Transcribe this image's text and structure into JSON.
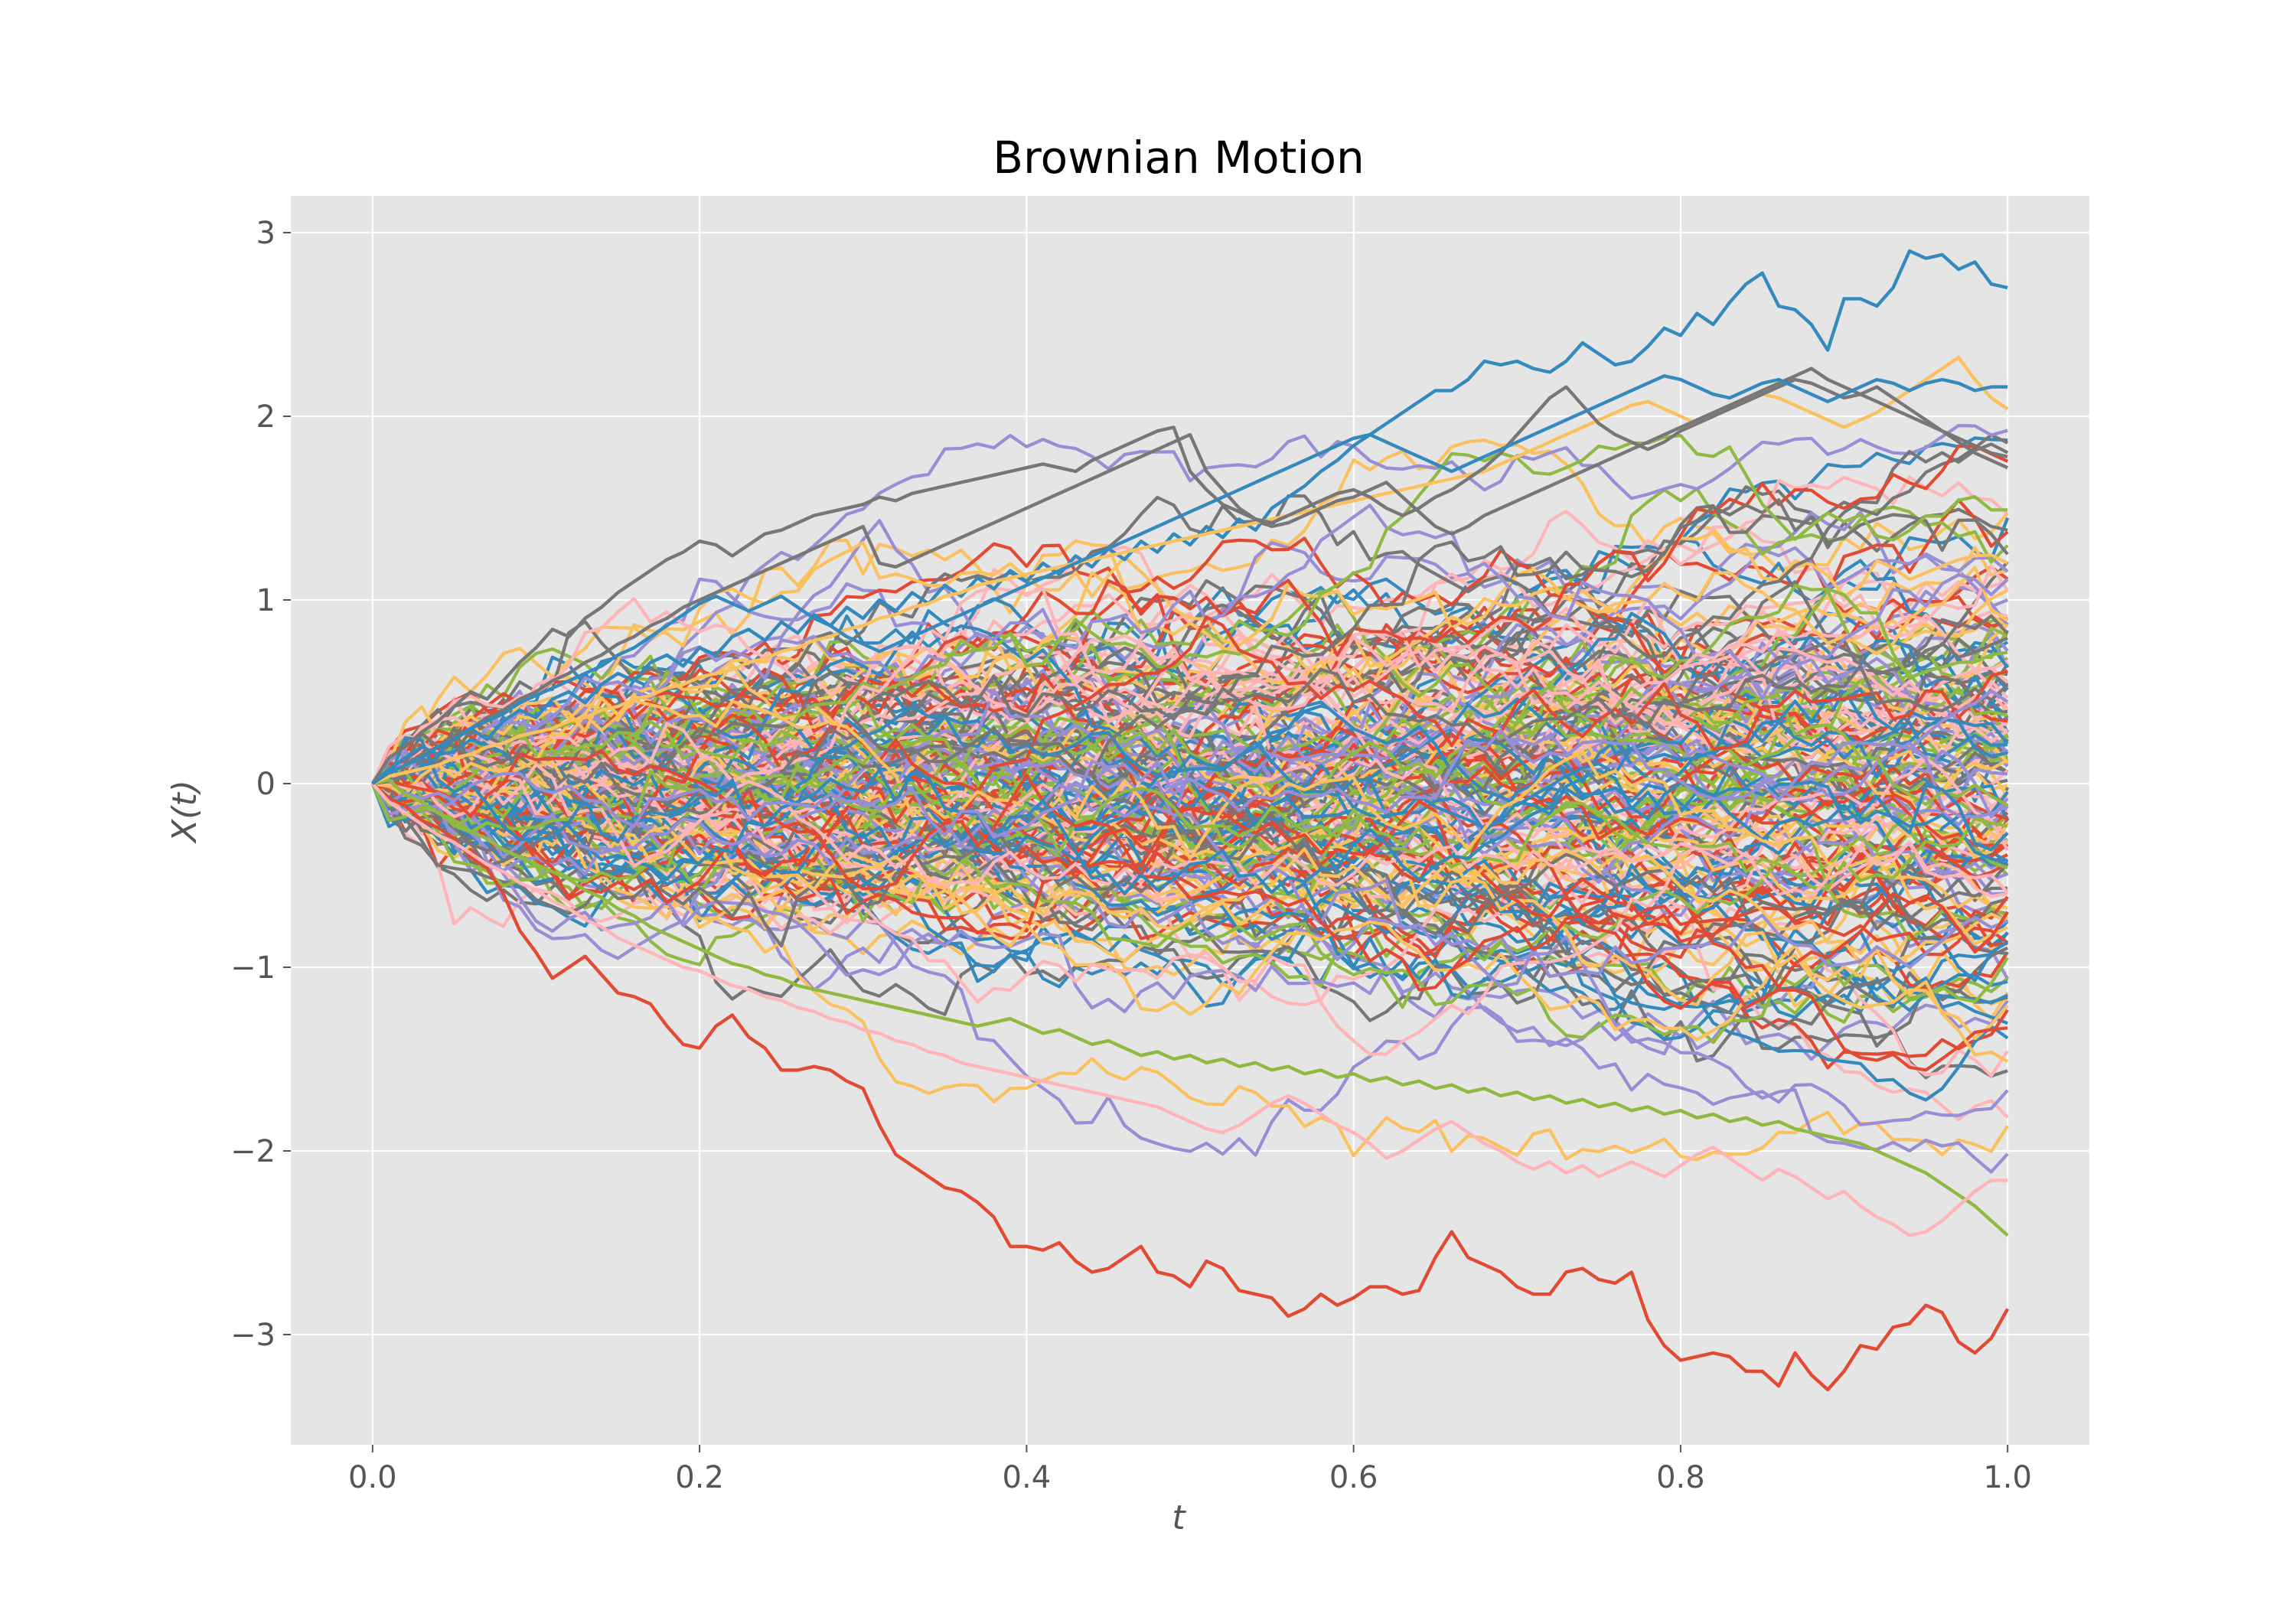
{
  "chart_data": {
    "type": "line",
    "title": "Brownian Motion",
    "xlabel": "t",
    "ylabel": "X(t)",
    "xlim": [
      -0.05,
      1.05
    ],
    "ylim": [
      -3.6,
      3.2
    ],
    "x_ticks": [
      0.0,
      0.2,
      0.4,
      0.6,
      0.8,
      1.0
    ],
    "x_tick_labels": [
      "0.0",
      "0.2",
      "0.4",
      "0.6",
      "0.8",
      "1.0"
    ],
    "y_ticks": [
      -3,
      -2,
      -1,
      0,
      1,
      2,
      3
    ],
    "y_tick_labels": [
      "−3",
      "−2",
      "−1",
      "0",
      "1",
      "2",
      "3"
    ],
    "grid": true,
    "style": "ggplot",
    "background_color": "#E5E5E5",
    "grid_color": "#FFFFFF",
    "palette": [
      "#E24A33",
      "#348ABD",
      "#988ED5",
      "#777777",
      "#FBC15E",
      "#8EBA42",
      "#FFB5B8"
    ],
    "n_steps": 100,
    "n_paths": 200,
    "x": [
      0.0,
      0.01,
      0.02,
      0.03,
      0.04,
      0.05,
      0.06,
      0.07,
      0.08,
      0.09,
      0.1,
      0.11,
      0.12,
      0.13,
      0.14,
      0.15,
      0.16,
      0.17,
      0.18,
      0.19,
      0.2,
      0.21,
      0.22,
      0.23,
      0.24,
      0.25,
      0.26,
      0.27,
      0.28,
      0.29,
      0.3,
      0.31,
      0.32,
      0.33,
      0.34,
      0.35,
      0.36,
      0.37,
      0.38,
      0.39,
      0.4,
      0.41,
      0.42,
      0.43,
      0.44,
      0.45,
      0.46,
      0.47,
      0.48,
      0.49,
      0.5,
      0.51,
      0.52,
      0.53,
      0.54,
      0.55,
      0.56,
      0.57,
      0.58,
      0.59,
      0.6,
      0.61,
      0.62,
      0.63,
      0.64,
      0.65,
      0.66,
      0.67,
      0.68,
      0.69,
      0.7,
      0.71,
      0.72,
      0.73,
      0.74,
      0.75,
      0.76,
      0.77,
      0.78,
      0.79,
      0.8,
      0.81,
      0.82,
      0.83,
      0.84,
      0.85,
      0.86,
      0.87,
      0.88,
      0.89,
      0.9,
      0.91,
      0.92,
      0.93,
      0.94,
      0.95,
      0.96,
      0.97,
      0.98,
      0.99,
      1.0
    ],
    "highlight_series": [
      {
        "color": "#348ABD",
        "values": [
          0,
          0.08,
          0.14,
          0.2,
          0.16,
          0.26,
          0.3,
          0.24,
          0.34,
          0.4,
          0.36,
          0.46,
          0.5,
          0.44,
          0.54,
          0.6,
          0.56,
          0.66,
          0.7,
          0.64,
          0.74,
          0.7,
          0.8,
          0.84,
          0.78,
          0.88,
          0.82,
          0.92,
          0.86,
          0.96,
          0.9,
          1.0,
          0.94,
          1.04,
          0.98,
          1.08,
          1.02,
          1.12,
          1.06,
          1.16,
          1.1,
          1.2,
          1.14,
          1.24,
          1.18,
          1.28,
          1.22,
          1.32,
          1.26,
          1.36,
          1.3,
          1.4,
          1.34,
          1.44,
          1.38,
          1.5,
          1.56,
          1.62,
          1.7,
          1.76,
          1.84,
          1.9,
          1.96,
          2.02,
          2.08,
          2.14,
          2.14,
          2.2,
          2.3,
          2.28,
          2.3,
          2.26,
          2.24,
          2.3,
          2.4,
          2.34,
          2.28,
          2.3,
          2.38,
          2.48,
          2.44,
          2.56,
          2.5,
          2.62,
          2.72,
          2.78,
          2.6,
          2.58,
          2.5,
          2.36,
          2.64,
          2.64,
          2.6,
          2.7,
          2.9,
          2.86,
          2.88,
          2.8,
          2.84,
          2.72,
          2.7
        ]
      },
      {
        "color": "#E24A33",
        "values": [
          0,
          -0.08,
          -0.12,
          -0.2,
          -0.24,
          -0.3,
          -0.4,
          -0.46,
          -0.6,
          -0.8,
          -0.92,
          -1.06,
          -1.0,
          -0.94,
          -1.04,
          -1.14,
          -1.16,
          -1.2,
          -1.32,
          -1.42,
          -1.44,
          -1.32,
          -1.26,
          -1.38,
          -1.44,
          -1.56,
          -1.56,
          -1.54,
          -1.56,
          -1.62,
          -1.66,
          -1.86,
          -2.02,
          -2.08,
          -2.14,
          -2.2,
          -2.22,
          -2.28,
          -2.36,
          -2.52,
          -2.52,
          -2.54,
          -2.5,
          -2.6,
          -2.66,
          -2.64,
          -2.58,
          -2.52,
          -2.66,
          -2.68,
          -2.74,
          -2.6,
          -2.64,
          -2.76,
          -2.78,
          -2.8,
          -2.9,
          -2.86,
          -2.78,
          -2.84,
          -2.8,
          -2.74,
          -2.74,
          -2.78,
          -2.76,
          -2.58,
          -2.44,
          -2.58,
          -2.62,
          -2.66,
          -2.74,
          -2.78,
          -2.78,
          -2.66,
          -2.64,
          -2.7,
          -2.72,
          -2.66,
          -2.92,
          -3.06,
          -3.14,
          -3.12,
          -3.1,
          -3.12,
          -3.2,
          -3.2,
          -3.28,
          -3.1,
          -3.22,
          -3.3,
          -3.2,
          -3.06,
          -3.08,
          -2.96,
          -2.94,
          -2.84,
          -2.88,
          -3.04,
          -3.1,
          -3.02,
          -2.86
        ]
      },
      {
        "color": "#8EBA42",
        "values": [
          0,
          0.02,
          -0.06,
          -0.1,
          -0.16,
          -0.2,
          -0.26,
          -0.3,
          -0.36,
          -0.4,
          -0.44,
          -0.48,
          -0.52,
          -0.58,
          -0.62,
          -0.68,
          -0.72,
          -0.78,
          -0.82,
          -0.86,
          -0.9,
          -0.94,
          -0.98,
          -1.0,
          -1.04,
          -1.06,
          -1.1,
          -1.12,
          -1.14,
          -1.16,
          -1.18,
          -1.2,
          -1.22,
          -1.24,
          -1.26,
          -1.28,
          -1.3,
          -1.32,
          -1.3,
          -1.28,
          -1.32,
          -1.36,
          -1.34,
          -1.38,
          -1.42,
          -1.4,
          -1.44,
          -1.48,
          -1.46,
          -1.5,
          -1.48,
          -1.52,
          -1.5,
          -1.54,
          -1.52,
          -1.56,
          -1.54,
          -1.58,
          -1.56,
          -1.6,
          -1.58,
          -1.62,
          -1.6,
          -1.64,
          -1.62,
          -1.66,
          -1.64,
          -1.68,
          -1.66,
          -1.7,
          -1.68,
          -1.72,
          -1.7,
          -1.74,
          -1.72,
          -1.76,
          -1.74,
          -1.78,
          -1.76,
          -1.8,
          -1.78,
          -1.82,
          -1.8,
          -1.84,
          -1.82,
          -1.86,
          -1.84,
          -1.88,
          -1.9,
          -1.92,
          -1.94,
          -1.96,
          -2.0,
          -2.04,
          -2.08,
          -2.12,
          -2.18,
          -2.24,
          -2.3,
          -2.38,
          -2.46
        ]
      },
      {
        "color": "#FFB5B8",
        "values": [
          0,
          -0.1,
          -0.16,
          -0.22,
          -0.28,
          -0.32,
          -0.38,
          -0.44,
          -0.48,
          -0.54,
          -0.58,
          -0.64,
          -0.68,
          -0.74,
          -0.78,
          -0.84,
          -0.88,
          -0.92,
          -0.96,
          -1.0,
          -1.02,
          -1.06,
          -1.1,
          -1.12,
          -1.16,
          -1.18,
          -1.22,
          -1.24,
          -1.28,
          -1.3,
          -1.34,
          -1.36,
          -1.4,
          -1.42,
          -1.46,
          -1.48,
          -1.52,
          -1.54,
          -1.56,
          -1.58,
          -1.6,
          -1.62,
          -1.64,
          -1.66,
          -1.68,
          -1.7,
          -1.72,
          -1.74,
          -1.76,
          -1.8,
          -1.84,
          -1.88,
          -1.9,
          -1.86,
          -1.8,
          -1.74,
          -1.7,
          -1.74,
          -1.8,
          -1.86,
          -1.9,
          -1.96,
          -2.04,
          -2.0,
          -1.94,
          -1.88,
          -1.84,
          -1.9,
          -1.96,
          -2.0,
          -2.06,
          -2.1,
          -2.06,
          -2.12,
          -2.08,
          -2.14,
          -2.1,
          -2.06,
          -2.1,
          -2.14,
          -2.08,
          -2.02,
          -1.98,
          -2.04,
          -2.1,
          -2.16,
          -2.1,
          -2.14,
          -2.2,
          -2.26,
          -2.22,
          -2.3,
          -2.36,
          -2.4,
          -2.46,
          -2.44,
          -2.38,
          -2.3,
          -2.22,
          -2.16,
          -2.16
        ]
      },
      {
        "color": "#FBC15E",
        "values": [
          0,
          0.04,
          0.06,
          0.08,
          0.1,
          0.14,
          0.16,
          0.2,
          0.22,
          0.26,
          0.28,
          0.3,
          0.34,
          0.36,
          0.4,
          0.42,
          0.46,
          0.48,
          0.52,
          0.54,
          0.58,
          0.6,
          0.62,
          0.66,
          0.68,
          0.72,
          0.74,
          0.78,
          0.8,
          0.84,
          0.86,
          0.9,
          0.92,
          0.96,
          0.98,
          1.02,
          1.04,
          1.08,
          1.1,
          1.12,
          1.14,
          1.16,
          1.18,
          1.2,
          1.22,
          1.24,
          1.26,
          1.28,
          1.3,
          1.32,
          1.34,
          1.36,
          1.38,
          1.4,
          1.42,
          1.44,
          1.46,
          1.48,
          1.5,
          1.52,
          1.54,
          1.56,
          1.58,
          1.6,
          1.62,
          1.64,
          1.66,
          1.68,
          1.7,
          1.74,
          1.78,
          1.82,
          1.86,
          1.9,
          1.94,
          1.98,
          2.02,
          2.06,
          2.08,
          2.04,
          2.0,
          1.96,
          2.0,
          2.04,
          2.08,
          2.12,
          2.1,
          2.06,
          2.02,
          1.98,
          1.94,
          1.98,
          2.02,
          2.08,
          2.14,
          2.2,
          2.26,
          2.32,
          2.2,
          2.1,
          2.04
        ]
      },
      {
        "color": "#777777",
        "values": [
          0,
          0.14,
          0.2,
          0.28,
          0.34,
          0.42,
          0.5,
          0.46,
          0.56,
          0.66,
          0.74,
          0.84,
          0.8,
          0.9,
          0.96,
          1.04,
          1.1,
          1.16,
          1.22,
          1.26,
          1.32,
          1.3,
          1.24,
          1.3,
          1.36,
          1.38,
          1.42,
          1.46,
          1.48,
          1.5,
          1.52,
          1.56,
          1.54,
          1.58,
          1.6,
          1.62,
          1.64,
          1.66,
          1.68,
          1.7,
          1.72,
          1.74,
          1.72,
          1.7,
          1.76,
          1.8,
          1.84,
          1.88,
          1.92,
          1.94,
          1.7,
          1.6,
          1.52,
          1.48,
          1.44,
          1.42,
          1.46,
          1.5,
          1.54,
          1.58,
          1.6,
          1.56,
          1.5,
          1.46,
          1.5,
          1.56,
          1.6,
          1.66,
          1.72,
          1.8,
          1.9,
          2.0,
          2.1,
          2.16,
          2.06,
          1.96,
          1.9,
          1.86,
          1.82,
          1.86,
          1.92,
          1.96,
          2.0,
          2.04,
          2.08,
          2.12,
          2.16,
          2.2,
          2.18,
          2.14,
          2.1,
          2.12,
          2.16,
          2.1,
          2.04,
          1.98,
          1.92,
          1.86,
          1.8,
          1.76,
          1.72
        ]
      },
      {
        "color": "#777777",
        "values": [
          0,
          0.06,
          0.1,
          0.16,
          0.2,
          0.26,
          0.3,
          0.36,
          0.4,
          0.46,
          0.5,
          0.56,
          0.6,
          0.66,
          0.7,
          0.76,
          0.8,
          0.86,
          0.9,
          0.96,
          1.0,
          1.04,
          1.08,
          1.12,
          1.16,
          1.2,
          1.24,
          1.28,
          1.32,
          1.36,
          1.4,
          1.2,
          1.18,
          1.22,
          1.26,
          1.3,
          1.34,
          1.38,
          1.42,
          1.46,
          1.5,
          1.54,
          1.58,
          1.62,
          1.66,
          1.7,
          1.74,
          1.78,
          1.82,
          1.86,
          1.9,
          1.7,
          1.6,
          1.5,
          1.44,
          1.4,
          1.42,
          1.46,
          1.5,
          1.54,
          1.56,
          1.6,
          1.64,
          1.56,
          1.48,
          1.4,
          1.36,
          1.4,
          1.46,
          1.5,
          1.54,
          1.58,
          1.62,
          1.66,
          1.7,
          1.74,
          1.78,
          1.82,
          1.86,
          1.9,
          1.94,
          1.98,
          2.02,
          2.06,
          2.1,
          2.14,
          2.18,
          2.22,
          2.26,
          2.2,
          2.16,
          2.12,
          2.08,
          2.04,
          2.0,
          1.96,
          1.92,
          1.88,
          1.84,
          1.8,
          1.78
        ]
      },
      {
        "color": "#348ABD",
        "values": [
          0,
          0.06,
          0.1,
          0.14,
          0.2,
          0.24,
          0.3,
          0.34,
          0.38,
          0.44,
          0.48,
          0.52,
          0.56,
          0.6,
          0.64,
          0.7,
          0.74,
          0.8,
          0.86,
          0.92,
          0.98,
          1.02,
          0.98,
          0.94,
          0.98,
          1.02,
          0.96,
          0.9,
          0.86,
          0.8,
          0.76,
          0.72,
          0.76,
          0.8,
          0.84,
          0.88,
          0.92,
          0.96,
          1.0,
          1.04,
          1.08,
          1.12,
          1.16,
          1.2,
          1.24,
          1.28,
          1.32,
          1.36,
          1.4,
          1.44,
          1.48,
          1.52,
          1.56,
          1.6,
          1.64,
          1.68,
          1.72,
          1.76,
          1.8,
          1.84,
          1.88,
          1.9,
          1.86,
          1.82,
          1.78,
          1.74,
          1.7,
          1.74,
          1.78,
          1.82,
          1.86,
          1.9,
          1.94,
          1.98,
          2.02,
          2.06,
          2.1,
          2.14,
          2.18,
          2.22,
          2.2,
          2.16,
          2.12,
          2.1,
          2.14,
          2.18,
          2.2,
          2.16,
          2.12,
          2.08,
          2.12,
          2.16,
          2.2,
          2.18,
          2.14,
          2.18,
          2.2,
          2.18,
          2.14,
          2.16,
          2.16
        ]
      }
    ]
  }
}
